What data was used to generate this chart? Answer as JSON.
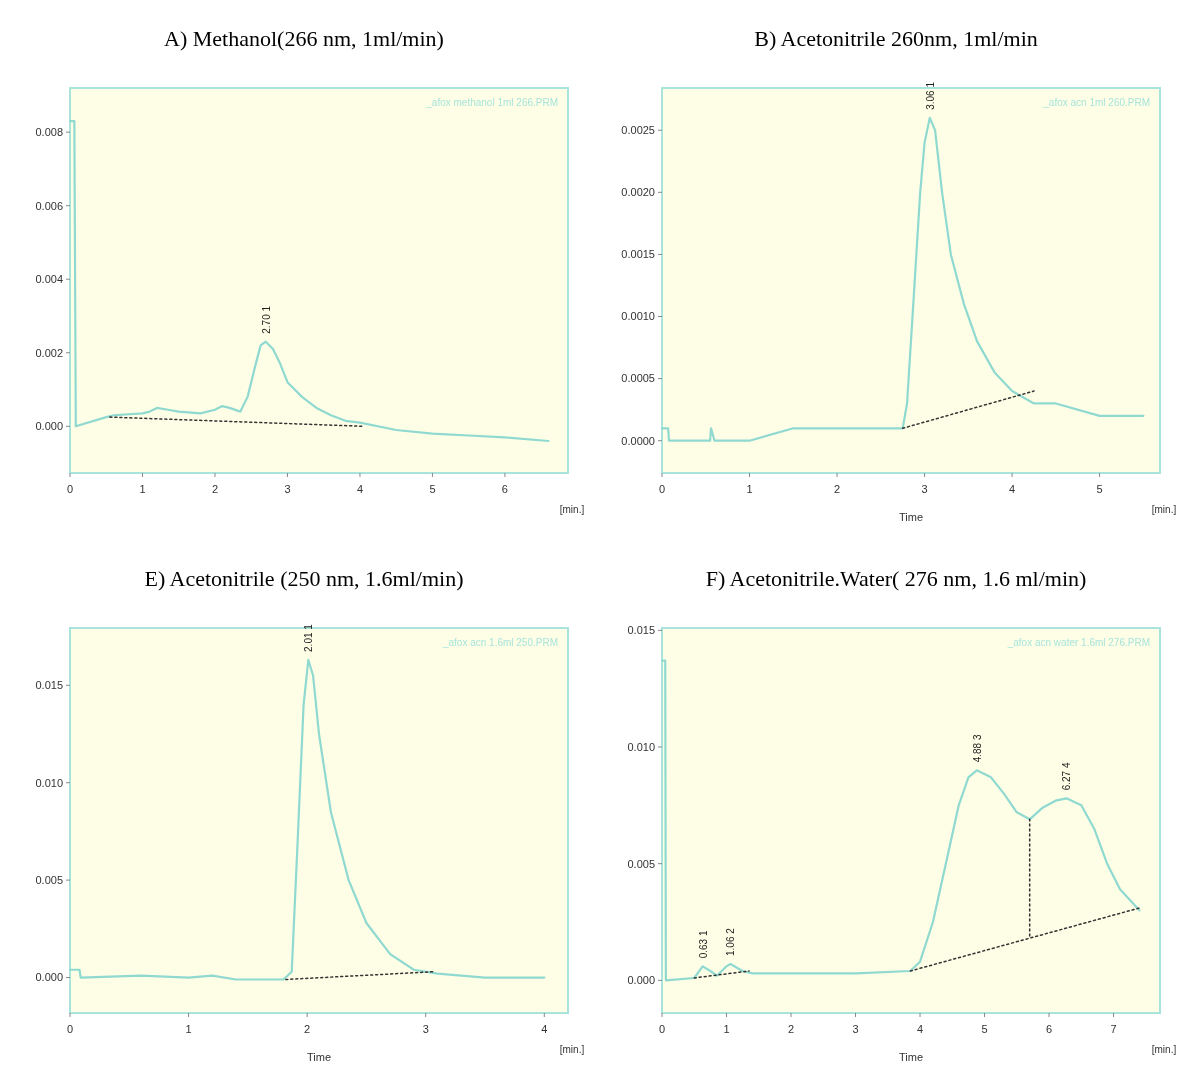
{
  "chart_data": [
    {
      "type": "line",
      "title": "A) Methanol(266 nm, 1ml/min)",
      "xlim": [
        0,
        6.87
      ],
      "ylim": [
        -0.00127,
        0.0092
      ],
      "xticks": [
        0,
        1,
        2,
        3,
        4,
        5,
        6
      ],
      "yticks": [
        {
          "value": 0,
          "label": "0.000"
        },
        0.002,
        0.004,
        0.006,
        0.008
      ],
      "grid": false,
      "annotations": [
        "_afox methanol 1ml 266.PRM",
        "[min.]",
        {
          "text": "2.70 1",
          "x": 2.7,
          "y": 0.0023
        }
      ],
      "series": [
        {
          "color": "#8fd9d0",
          "line_style": "solid",
          "x": [
            0,
            0.06,
            0.08,
            0.5,
            0.6,
            1.0,
            1.1,
            1.2,
            1.35,
            1.5,
            1.8,
            2.0,
            2.1,
            2.2,
            2.35,
            2.45,
            2.55,
            2.63,
            2.7,
            2.8,
            2.9,
            3.0,
            3.2,
            3.4,
            3.6,
            3.8,
            4.0,
            4.5,
            5.0,
            5.5,
            6.0,
            6.6
          ],
          "values": [
            0.0083,
            0.0083,
            0,
            0.00025,
            0.0003,
            0.00035,
            0.0004,
            0.0005,
            0.00045,
            0.0004,
            0.00035,
            0.00045,
            0.00055,
            0.0005,
            0.0004,
            0.0008,
            0.0016,
            0.0022,
            0.0023,
            0.0021,
            0.0017,
            0.0012,
            0.0008,
            0.0005,
            0.0003,
            0.00015,
            0.0001,
            -0.0001,
            -0.0002,
            -0.00025,
            -0.0003,
            -0.0004
          ]
        },
        {
          "color": "#333333",
          "line_style": "dotted",
          "x": [
            0.55,
            4.05
          ],
          "values": [
            0.00025,
            0
          ]
        }
      ]
    },
    {
      "type": "line",
      "title": "B) Acetonitrile 260nm, 1ml/min",
      "xlabel": "Time",
      "xlim": [
        0,
        5.69
      ],
      "ylim": [
        -0.00026,
        0.00284
      ],
      "xticks": [
        0,
        1,
        2,
        3,
        4,
        5
      ],
      "yticks": [
        {
          "value": 0,
          "label": "0.0000"
        },
        0.0005,
        {
          "value": 0.001,
          "label": "0.0010"
        },
        0.0015,
        {
          "value": 0.002,
          "label": "0.0020"
        },
        0.0025
      ],
      "grid": false,
      "annotations": [
        "_afox acn 1ml 260.PRM",
        "[min.]",
        {
          "text": "3.06 1",
          "x": 3.06,
          "y": 0.0026
        }
      ],
      "series": [
        {
          "color": "#8fd9d0",
          "line_style": "solid",
          "x": [
            0,
            0.07,
            0.08,
            0.55,
            0.56,
            0.6,
            1.0,
            1.5,
            2.0,
            2.5,
            2.75,
            2.8,
            2.88,
            2.95,
            3.0,
            3.06,
            3.12,
            3.2,
            3.3,
            3.45,
            3.6,
            3.8,
            4.0,
            4.25,
            4.5,
            5.0,
            5.5
          ],
          "values": [
            0.0001,
            0.0001,
            0,
            0,
            0.0001,
            0,
            0,
            0.0001,
            0.0001,
            0.0001,
            0.0001,
            0.0003,
            0.0012,
            0.002,
            0.0024,
            0.0026,
            0.0025,
            0.002,
            0.0015,
            0.0011,
            0.0008,
            0.00055,
            0.0004,
            0.0003,
            0.0003,
            0.0002,
            0.0002
          ]
        },
        {
          "color": "#333333",
          "line_style": "dotted",
          "x": [
            2.75,
            4.25
          ],
          "values": [
            0.0001,
            0.0004
          ]
        }
      ]
    },
    {
      "type": "line",
      "title": "E)  Acetonitrile (250 nm, 1.6ml/min)",
      "xlabel": "Time",
      "xlim": [
        0,
        4.2
      ],
      "ylim": [
        -0.00182,
        0.01794
      ],
      "xticks": [
        0,
        1,
        2,
        3,
        4
      ],
      "yticks": [
        {
          "value": 0,
          "label": "0.000"
        },
        0.005,
        {
          "value": 0.01,
          "label": "0.010"
        },
        0.015
      ],
      "grid": false,
      "annotations": [
        "_afox acn 1.6ml 250.PRM",
        "[min.]",
        {
          "text": "2.01 1",
          "x": 2.01,
          "y": 0.0163
        }
      ],
      "series": [
        {
          "color": "#8fd9d0",
          "line_style": "solid",
          "x": [
            0,
            0.08,
            0.09,
            0.6,
            1.0,
            1.2,
            1.4,
            1.8,
            1.87,
            1.92,
            1.97,
            2.01,
            2.05,
            2.1,
            2.2,
            2.35,
            2.5,
            2.7,
            2.9,
            3.1,
            3.5,
            4.0
          ],
          "values": [
            0.0004,
            0.0004,
            0,
            0.0001,
            0,
            0.0001,
            -0.0001,
            -0.0001,
            0.0003,
            0.007,
            0.014,
            0.0163,
            0.0155,
            0.0125,
            0.0085,
            0.005,
            0.0028,
            0.0012,
            0.0004,
            0.0002,
            0,
            0
          ]
        },
        {
          "color": "#333333",
          "line_style": "dotted",
          "x": [
            1.82,
            3.07
          ],
          "values": [
            -0.0001,
            0.0003
          ]
        }
      ]
    },
    {
      "type": "line",
      "title": "F) Acetonitrile.Water( 276 nm, 1.6 ml/min)",
      "xlabel": "Time",
      "xlim": [
        0,
        7.72
      ],
      "ylim": [
        -0.0014,
        0.0151
      ],
      "xticks": [
        0,
        1,
        2,
        3,
        4,
        5,
        6,
        7
      ],
      "yticks": [
        {
          "value": 0,
          "label": "0.000"
        },
        0.005,
        {
          "value": 0.01,
          "label": "0.010"
        },
        0.015
      ],
      "grid": false,
      "annotations": [
        "_afox acn water 1.6ml 276.PRM",
        "[min.]",
        {
          "text": "0.63 1",
          "x": 0.63,
          "y": 0.0006
        },
        {
          "text": "1.06 2",
          "x": 1.06,
          "y": 0.0007
        },
        {
          "text": "4.88 3",
          "x": 4.88,
          "y": 0.009
        },
        {
          "text": "6.27 4",
          "x": 6.27,
          "y": 0.0078
        }
      ],
      "series": [
        {
          "color": "#8fd9d0",
          "line_style": "solid",
          "x": [
            0,
            0.05,
            0.06,
            0.5,
            0.63,
            0.75,
            0.85,
            1.0,
            1.06,
            1.25,
            1.4,
            2.0,
            3.0,
            3.85,
            4.0,
            4.2,
            4.4,
            4.6,
            4.75,
            4.88,
            5.1,
            5.3,
            5.5,
            5.7,
            5.9,
            6.1,
            6.27,
            6.5,
            6.7,
            6.9,
            7.1,
            7.4
          ],
          "values": [
            0.0137,
            0.0137,
            0,
            0.0001,
            0.0006,
            0.0004,
            0.0002,
            0.0006,
            0.0007,
            0.0004,
            0.0003,
            0.0003,
            0.0003,
            0.0004,
            0.0008,
            0.0025,
            0.005,
            0.0075,
            0.0087,
            0.009,
            0.0087,
            0.008,
            0.0072,
            0.0069,
            0.0074,
            0.0077,
            0.0078,
            0.0075,
            0.0065,
            0.005,
            0.0039,
            0.003
          ]
        },
        {
          "color": "#333333",
          "line_style": "dotted",
          "x": [
            0.5,
            1.35
          ],
          "values": [
            0.0001,
            0.0004
          ]
        },
        {
          "color": "#333333",
          "line_style": "dotted",
          "x": [
            3.85,
            7.4
          ],
          "values": [
            0.0004,
            0.0031
          ]
        },
        {
          "color": "#333333",
          "line_style": "dotted",
          "x": [
            5.7,
            5.7
          ],
          "values": [
            0.0019,
            0.0069
          ]
        }
      ]
    }
  ]
}
